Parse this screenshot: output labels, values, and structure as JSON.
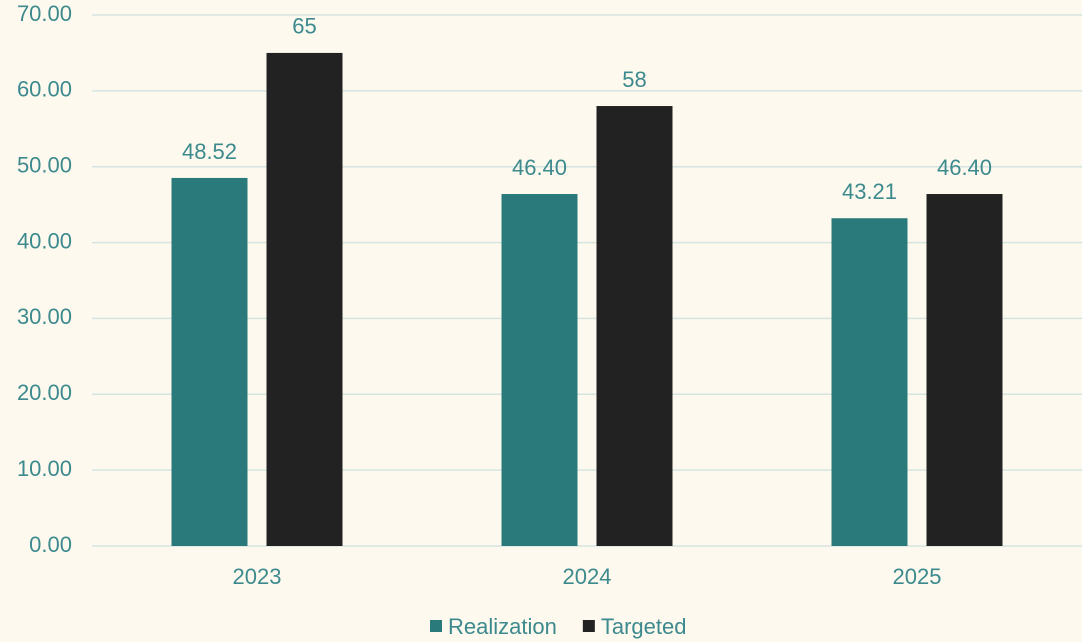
{
  "chart_data": {
    "type": "bar",
    "categories": [
      "2023",
      "2024",
      "2025"
    ],
    "series": [
      {
        "name": "Realization",
        "color": "#2b7a7b",
        "values": [
          48.52,
          46.4,
          43.21
        ],
        "value_labels": [
          "48.52",
          "46.40",
          "43.21"
        ]
      },
      {
        "name": "Targeted",
        "color": "#222222",
        "values": [
          65,
          58,
          46.4
        ],
        "value_labels": [
          "65",
          "58",
          "46.40"
        ]
      }
    ],
    "ylim": [
      0,
      70
    ],
    "yticks": [
      {
        "value": 0,
        "label": "0.00"
      },
      {
        "value": 10,
        "label": "10.00"
      },
      {
        "value": 20,
        "label": "20.00"
      },
      {
        "value": 30,
        "label": "30.00"
      },
      {
        "value": 40,
        "label": "40.00"
      },
      {
        "value": 50,
        "label": "50.00"
      },
      {
        "value": 60,
        "label": "60.00"
      },
      {
        "value": 70,
        "label": "70.00"
      }
    ],
    "grid": true,
    "legend": "bottom"
  }
}
